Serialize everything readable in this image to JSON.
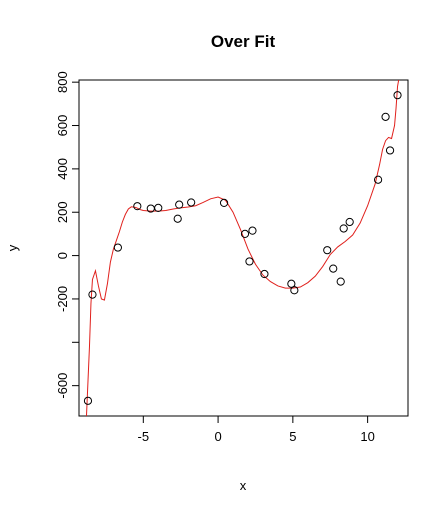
{
  "chart_data": {
    "type": "scatter",
    "title": "Over Fit",
    "xlabel": "x",
    "ylabel": "y",
    "xlim": [
      -9.3,
      12.7
    ],
    "ylim": [
      -740,
      810
    ],
    "x_ticks": [
      -5,
      0,
      5,
      10
    ],
    "x_tick_labels": [
      "-5",
      "0",
      "5",
      "10"
    ],
    "y_ticks": [
      800,
      600,
      400,
      200,
      0,
      -200,
      -400,
      -600
    ],
    "y_tick_labels": [
      "800",
      "600",
      "400",
      "200",
      "0",
      "-200",
      "",
      "-600"
    ],
    "grid": false,
    "legend": "none",
    "point_color": "#000000",
    "fit_color": "#e0201c",
    "points": [
      {
        "x": -8.7,
        "y": -670
      },
      {
        "x": -8.4,
        "y": -180
      },
      {
        "x": -6.7,
        "y": 37
      },
      {
        "x": -5.4,
        "y": 228
      },
      {
        "x": -4.5,
        "y": 217
      },
      {
        "x": -4.0,
        "y": 220
      },
      {
        "x": -2.7,
        "y": 170
      },
      {
        "x": -2.6,
        "y": 235
      },
      {
        "x": -1.8,
        "y": 245
      },
      {
        "x": 0.4,
        "y": 243
      },
      {
        "x": 1.8,
        "y": 100
      },
      {
        "x": 2.1,
        "y": -27
      },
      {
        "x": 2.3,
        "y": 115
      },
      {
        "x": 3.1,
        "y": -85
      },
      {
        "x": 4.9,
        "y": -130
      },
      {
        "x": 5.1,
        "y": -160
      },
      {
        "x": 7.3,
        "y": 25
      },
      {
        "x": 7.7,
        "y": -60
      },
      {
        "x": 8.2,
        "y": -120
      },
      {
        "x": 8.4,
        "y": 125
      },
      {
        "x": 8.8,
        "y": 155
      },
      {
        "x": 10.7,
        "y": 350
      },
      {
        "x": 11.2,
        "y": 640
      },
      {
        "x": 11.5,
        "y": 485
      },
      {
        "x": 12.0,
        "y": 740
      }
    ],
    "fit_line": {
      "name": "",
      "x": [
        -8.8,
        -8.6,
        -8.5,
        -8.4,
        -8.2,
        -8.0,
        -7.8,
        -7.6,
        -7.4,
        -7.2,
        -7.0,
        -6.8,
        -6.6,
        -6.4,
        -6.2,
        -6.0,
        -5.8,
        -5.5,
        -5.2,
        -5.0,
        -4.5,
        -4.0,
        -3.5,
        -3.0,
        -2.5,
        -2.0,
        -1.5,
        -1.0,
        -0.5,
        0.0,
        0.5,
        1.0,
        1.5,
        2.0,
        2.5,
        3.0,
        3.5,
        4.0,
        4.5,
        5.0,
        5.5,
        6.0,
        6.5,
        7.0,
        7.5,
        8.0,
        8.5,
        9.0,
        9.5,
        10.0,
        10.5,
        10.8,
        11.0,
        11.2,
        11.4,
        11.6,
        11.8,
        11.9,
        12.0,
        12.1,
        12.2,
        12.3
      ],
      "y": [
        -740,
        -420,
        -220,
        -110,
        -70,
        -140,
        -200,
        -205,
        -130,
        -30,
        30,
        70,
        110,
        155,
        190,
        215,
        225,
        222,
        212,
        208,
        205,
        205,
        208,
        215,
        220,
        224,
        230,
        245,
        262,
        270,
        255,
        200,
        120,
        30,
        -40,
        -90,
        -120,
        -140,
        -150,
        -150,
        -145,
        -125,
        -95,
        -50,
        5,
        40,
        65,
        95,
        150,
        230,
        330,
        420,
        490,
        530,
        545,
        540,
        600,
        680,
        780,
        820,
        830,
        840
      ]
    }
  }
}
